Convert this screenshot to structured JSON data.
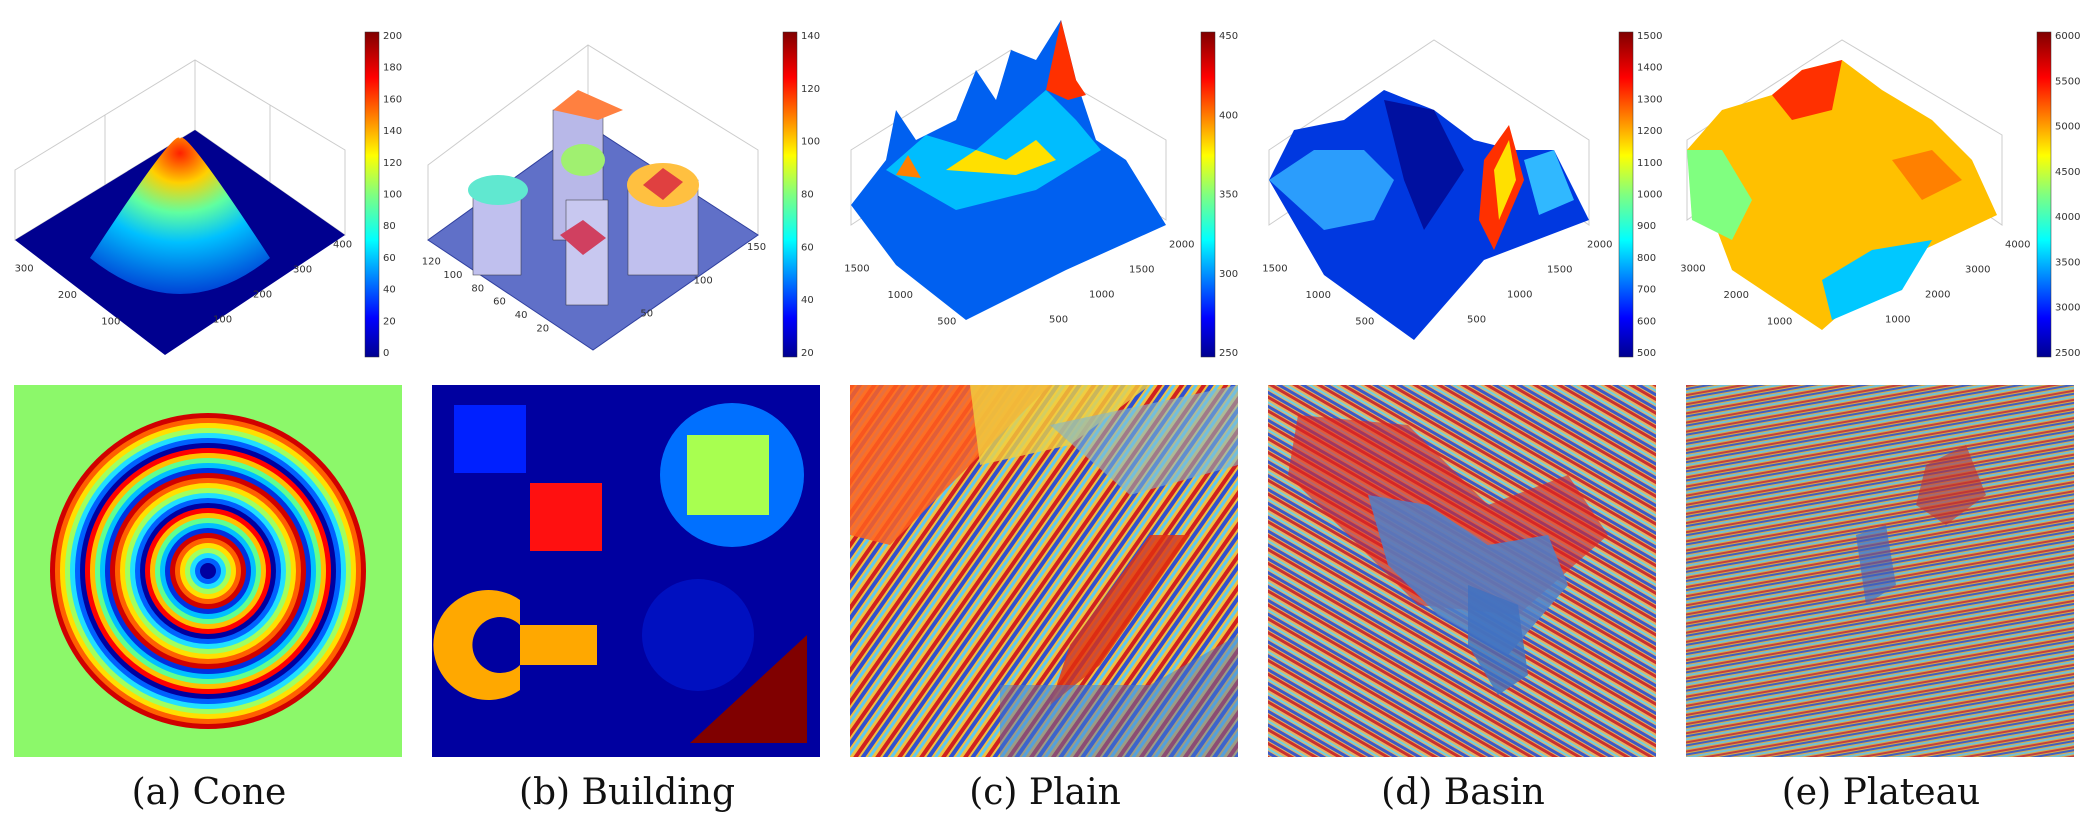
{
  "colors": {
    "jet": [
      "#00008f",
      "#0000ff",
      "#0080ff",
      "#00ffff",
      "#80ff80",
      "#ffff00",
      "#ff8000",
      "#ff0000",
      "#800000"
    ],
    "cone_bg": "#8cf86a",
    "building_bg": "#0000a0"
  },
  "panels": [
    {
      "id": "cone",
      "caption": "(a)  Cone",
      "colorbar_ticks": [
        "200",
        "180",
        "160",
        "140",
        "120",
        "100",
        "80",
        "60",
        "40",
        "20",
        "0"
      ],
      "axis_left_ticks": [
        "300",
        "200",
        "100"
      ],
      "axis_right_ticks": [
        "400",
        "300",
        "200",
        "100"
      ]
    },
    {
      "id": "building",
      "caption": "(b)  Building",
      "colorbar_ticks": [
        "140",
        "120",
        "100",
        "80",
        "60",
        "40",
        "20"
      ],
      "axis_left_ticks": [
        "120",
        "100",
        "80",
        "60",
        "40",
        "20"
      ],
      "axis_right_ticks": [
        "150",
        "100",
        "50"
      ]
    },
    {
      "id": "plain",
      "caption": "(c)  Plain",
      "colorbar_ticks": [
        "450",
        "400",
        "350",
        "300",
        "250"
      ],
      "axis_left_ticks": [
        "1500",
        "1000",
        "500"
      ],
      "axis_right_ticks": [
        "2000",
        "1500",
        "1000",
        "500"
      ]
    },
    {
      "id": "basin",
      "caption": "(d)  Basin",
      "colorbar_ticks": [
        "1500",
        "1400",
        "1300",
        "1200",
        "1100",
        "1000",
        "900",
        "800",
        "700",
        "600",
        "500"
      ],
      "axis_left_ticks": [
        "1500",
        "1000",
        "500"
      ],
      "axis_right_ticks": [
        "2000",
        "1500",
        "1000",
        "500"
      ]
    },
    {
      "id": "plateau",
      "caption": "(e)  Plateau",
      "colorbar_ticks": [
        "6000",
        "5500",
        "5000",
        "4500",
        "4000",
        "3500",
        "3000",
        "2500"
      ],
      "axis_left_ticks": [
        "3000",
        "2000",
        "1000"
      ],
      "axis_right_ticks": [
        "4000",
        "3000",
        "2000",
        "1000"
      ]
    }
  ]
}
